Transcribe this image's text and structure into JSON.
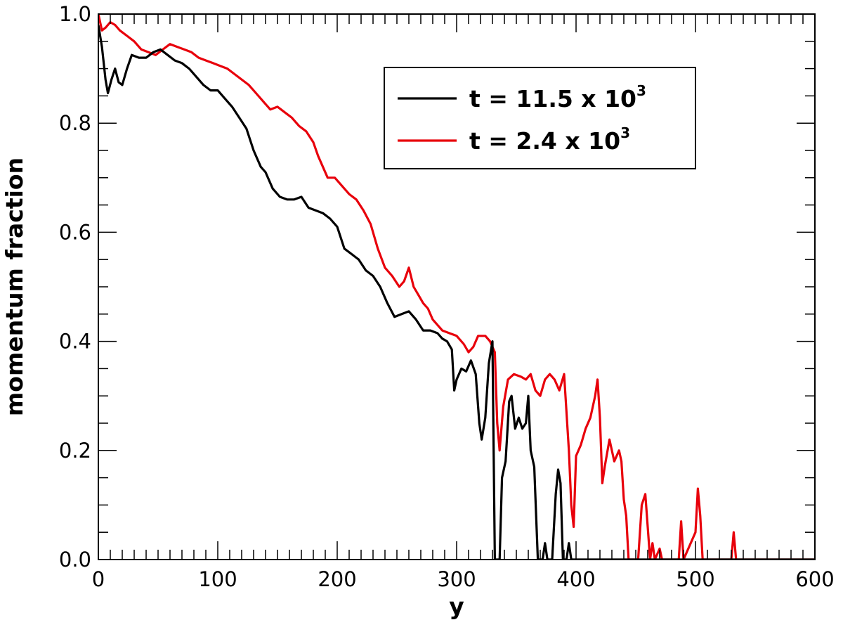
{
  "chart_data": {
    "type": "line",
    "title": "",
    "xlabel": "y",
    "ylabel": "momentum fraction",
    "xlim": [
      0,
      600
    ],
    "ylim": [
      0,
      1.0
    ],
    "x_ticks": [
      0,
      100,
      200,
      300,
      400,
      500,
      600
    ],
    "x_tick_labels": [
      "0",
      "100",
      "200",
      "300",
      "400",
      "500",
      "600"
    ],
    "y_ticks": [
      0,
      0.2,
      0.4,
      0.6,
      0.8,
      1.0
    ],
    "y_tick_labels": [
      "0.0",
      "0.2",
      "0.4",
      "0.6",
      "0.8",
      "1.0"
    ],
    "grid": false,
    "legend_position": "top-right",
    "series": [
      {
        "name": "t = 11.5 x 10",
        "name_exponent": "3",
        "color": "#000000",
        "points": [
          [
            0,
            0.98
          ],
          [
            3,
            0.94
          ],
          [
            6,
            0.88
          ],
          [
            8,
            0.855
          ],
          [
            11,
            0.88
          ],
          [
            14,
            0.9
          ],
          [
            17,
            0.875
          ],
          [
            20,
            0.87
          ],
          [
            24,
            0.9
          ],
          [
            28,
            0.925
          ],
          [
            34,
            0.92
          ],
          [
            40,
            0.92
          ],
          [
            46,
            0.93
          ],
          [
            52,
            0.935
          ],
          [
            58,
            0.925
          ],
          [
            64,
            0.915
          ],
          [
            70,
            0.91
          ],
          [
            76,
            0.9
          ],
          [
            82,
            0.885
          ],
          [
            88,
            0.87
          ],
          [
            94,
            0.86
          ],
          [
            100,
            0.86
          ],
          [
            106,
            0.845
          ],
          [
            112,
            0.83
          ],
          [
            118,
            0.81
          ],
          [
            124,
            0.79
          ],
          [
            130,
            0.75
          ],
          [
            136,
            0.72
          ],
          [
            140,
            0.71
          ],
          [
            146,
            0.68
          ],
          [
            152,
            0.665
          ],
          [
            158,
            0.66
          ],
          [
            164,
            0.66
          ],
          [
            170,
            0.665
          ],
          [
            176,
            0.645
          ],
          [
            182,
            0.64
          ],
          [
            188,
            0.635
          ],
          [
            194,
            0.625
          ],
          [
            200,
            0.61
          ],
          [
            206,
            0.57
          ],
          [
            212,
            0.56
          ],
          [
            218,
            0.55
          ],
          [
            224,
            0.53
          ],
          [
            230,
            0.52
          ],
          [
            236,
            0.5
          ],
          [
            242,
            0.47
          ],
          [
            248,
            0.445
          ],
          [
            254,
            0.45
          ],
          [
            260,
            0.455
          ],
          [
            266,
            0.44
          ],
          [
            272,
            0.42
          ],
          [
            278,
            0.42
          ],
          [
            284,
            0.415
          ],
          [
            288,
            0.405
          ],
          [
            292,
            0.4
          ],
          [
            296,
            0.385
          ],
          [
            298,
            0.31
          ],
          [
            300,
            0.33
          ],
          [
            304,
            0.35
          ],
          [
            308,
            0.345
          ],
          [
            312,
            0.365
          ],
          [
            316,
            0.34
          ],
          [
            319,
            0.25
          ],
          [
            321,
            0.22
          ],
          [
            324,
            0.26
          ],
          [
            327,
            0.36
          ],
          [
            330,
            0.4
          ],
          [
            331,
            0.2
          ],
          [
            332,
            0.0
          ],
          [
            336,
            0.0
          ],
          [
            338,
            0.15
          ],
          [
            341,
            0.18
          ],
          [
            344,
            0.29
          ],
          [
            346,
            0.3
          ],
          [
            349,
            0.24
          ],
          [
            352,
            0.26
          ],
          [
            355,
            0.24
          ],
          [
            358,
            0.25
          ],
          [
            360,
            0.3
          ],
          [
            362,
            0.2
          ],
          [
            365,
            0.17
          ],
          [
            368,
            0.0
          ],
          [
            372,
            0.0
          ],
          [
            374,
            0.03
          ],
          [
            376,
            0.0
          ],
          [
            380,
            0.0
          ],
          [
            383,
            0.12
          ],
          [
            385,
            0.165
          ],
          [
            387,
            0.14
          ],
          [
            389,
            0.0
          ],
          [
            392,
            0.0
          ],
          [
            394,
            0.03
          ],
          [
            396,
            0.0
          ],
          [
            400,
            0.0
          ],
          [
            600,
            0.0
          ]
        ]
      },
      {
        "name": "t = 2.4 x 10",
        "name_exponent": "3",
        "color": "#e8000b",
        "points": [
          [
            0,
            1.0
          ],
          [
            3,
            0.97
          ],
          [
            6,
            0.975
          ],
          [
            10,
            0.985
          ],
          [
            14,
            0.98
          ],
          [
            18,
            0.97
          ],
          [
            24,
            0.96
          ],
          [
            30,
            0.95
          ],
          [
            36,
            0.935
          ],
          [
            42,
            0.93
          ],
          [
            48,
            0.925
          ],
          [
            54,
            0.935
          ],
          [
            60,
            0.945
          ],
          [
            66,
            0.94
          ],
          [
            72,
            0.935
          ],
          [
            78,
            0.93
          ],
          [
            84,
            0.92
          ],
          [
            90,
            0.915
          ],
          [
            96,
            0.91
          ],
          [
            102,
            0.905
          ],
          [
            108,
            0.9
          ],
          [
            114,
            0.89
          ],
          [
            120,
            0.88
          ],
          [
            126,
            0.87
          ],
          [
            132,
            0.855
          ],
          [
            138,
            0.84
          ],
          [
            144,
            0.825
          ],
          [
            150,
            0.83
          ],
          [
            156,
            0.82
          ],
          [
            162,
            0.81
          ],
          [
            168,
            0.795
          ],
          [
            174,
            0.785
          ],
          [
            180,
            0.765
          ],
          [
            184,
            0.74
          ],
          [
            188,
            0.72
          ],
          [
            192,
            0.7
          ],
          [
            198,
            0.7
          ],
          [
            204,
            0.685
          ],
          [
            210,
            0.67
          ],
          [
            216,
            0.66
          ],
          [
            222,
            0.64
          ],
          [
            228,
            0.615
          ],
          [
            234,
            0.57
          ],
          [
            240,
            0.535
          ],
          [
            246,
            0.52
          ],
          [
            252,
            0.5
          ],
          [
            256,
            0.51
          ],
          [
            260,
            0.535
          ],
          [
            264,
            0.5
          ],
          [
            268,
            0.485
          ],
          [
            272,
            0.47
          ],
          [
            276,
            0.46
          ],
          [
            280,
            0.44
          ],
          [
            284,
            0.43
          ],
          [
            288,
            0.42
          ],
          [
            294,
            0.415
          ],
          [
            300,
            0.41
          ],
          [
            306,
            0.395
          ],
          [
            310,
            0.38
          ],
          [
            314,
            0.39
          ],
          [
            318,
            0.41
          ],
          [
            324,
            0.41
          ],
          [
            328,
            0.4
          ],
          [
            332,
            0.38
          ],
          [
            334,
            0.25
          ],
          [
            336,
            0.2
          ],
          [
            339,
            0.28
          ],
          [
            343,
            0.33
          ],
          [
            348,
            0.34
          ],
          [
            354,
            0.335
          ],
          [
            358,
            0.33
          ],
          [
            362,
            0.34
          ],
          [
            366,
            0.31
          ],
          [
            370,
            0.3
          ],
          [
            374,
            0.33
          ],
          [
            378,
            0.34
          ],
          [
            382,
            0.33
          ],
          [
            386,
            0.31
          ],
          [
            390,
            0.34
          ],
          [
            394,
            0.2
          ],
          [
            396,
            0.1
          ],
          [
            398,
            0.06
          ],
          [
            400,
            0.19
          ],
          [
            404,
            0.21
          ],
          [
            408,
            0.24
          ],
          [
            412,
            0.26
          ],
          [
            416,
            0.3
          ],
          [
            418,
            0.33
          ],
          [
            420,
            0.26
          ],
          [
            422,
            0.14
          ],
          [
            424,
            0.17
          ],
          [
            428,
            0.22
          ],
          [
            432,
            0.18
          ],
          [
            436,
            0.2
          ],
          [
            438,
            0.18
          ],
          [
            440,
            0.11
          ],
          [
            442,
            0.08
          ],
          [
            444,
            0.0
          ],
          [
            452,
            0.0
          ],
          [
            455,
            0.1
          ],
          [
            458,
            0.12
          ],
          [
            460,
            0.06
          ],
          [
            462,
            0.0
          ],
          [
            464,
            0.03
          ],
          [
            466,
            0.0
          ],
          [
            470,
            0.02
          ],
          [
            472,
            0.0
          ],
          [
            486,
            0.0
          ],
          [
            488,
            0.07
          ],
          [
            490,
            0.0
          ],
          [
            500,
            0.05
          ],
          [
            502,
            0.13
          ],
          [
            504,
            0.08
          ],
          [
            506,
            0.0
          ],
          [
            530,
            0.0
          ],
          [
            532,
            0.05
          ],
          [
            534,
            0.0
          ],
          [
            600,
            0.0
          ]
        ]
      }
    ]
  }
}
